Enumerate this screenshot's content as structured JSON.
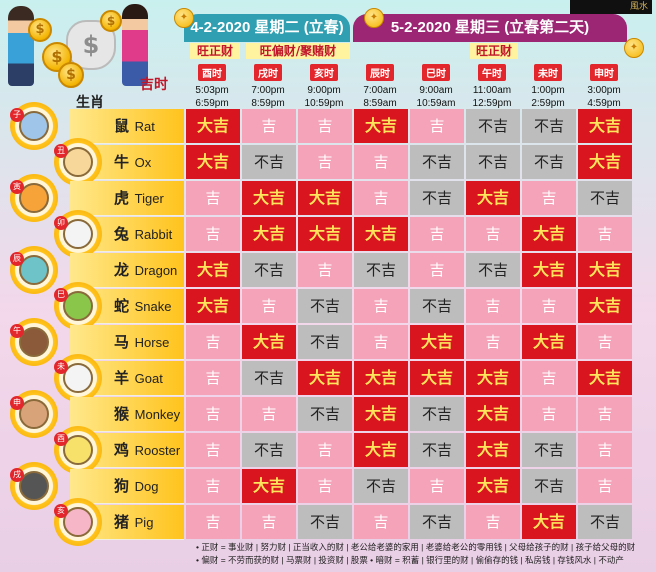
{
  "brand": {
    "logo_text": "風水"
  },
  "dates": [
    {
      "label": "4-2-2020 星期二 (立春)",
      "color": "#2f9fb1"
    },
    {
      "label": "5-2-2020 星期三 (立春第二天)",
      "color": "#9c2574"
    }
  ],
  "fortunes": [
    "旺正财",
    "旺偏财/聚赌财",
    "旺正财"
  ],
  "header": {
    "jishi": "吉时",
    "shengxiao": "生肖"
  },
  "slots": [
    {
      "tag": "酉时",
      "start": "5:03pm",
      "end": "6:59pm"
    },
    {
      "tag": "戌时",
      "start": "7:00pm",
      "end": "8:59pm"
    },
    {
      "tag": "亥时",
      "start": "9:00pm",
      "end": "10:59pm"
    },
    {
      "tag": "辰时",
      "start": "7:00am",
      "end": "8:59am"
    },
    {
      "tag": "巳时",
      "start": "9:00am",
      "end": "10:59am"
    },
    {
      "tag": "午时",
      "start": "11:00am",
      "end": "12:59pm"
    },
    {
      "tag": "未时",
      "start": "1:00pm",
      "end": "2:59pm"
    },
    {
      "tag": "申时",
      "start": "3:00pm",
      "end": "4:59pm"
    }
  ],
  "animals": [
    {
      "cn": "鼠",
      "en": "Rat",
      "badge": "子",
      "color": "#9fc6e8",
      "cells": [
        "大吉",
        "吉",
        "吉",
        "大吉",
        "吉",
        "不吉",
        "不吉",
        "大吉"
      ]
    },
    {
      "cn": "牛",
      "en": "Ox",
      "badge": "丑",
      "color": "#f7d79a",
      "cells": [
        "大吉",
        "不吉",
        "吉",
        "吉",
        "不吉",
        "不吉",
        "不吉",
        "大吉"
      ]
    },
    {
      "cn": "虎",
      "en": "Tiger",
      "badge": "寅",
      "color": "#f6a33a",
      "cells": [
        "吉",
        "大吉",
        "大吉",
        "吉",
        "不吉",
        "大吉",
        "吉",
        "不吉"
      ]
    },
    {
      "cn": "兔",
      "en": "Rabbit",
      "badge": "卯",
      "color": "#f4f4f4",
      "cells": [
        "吉",
        "大吉",
        "大吉",
        "大吉",
        "吉",
        "吉",
        "大吉",
        "吉"
      ]
    },
    {
      "cn": "龙",
      "en": "Dragon",
      "badge": "辰",
      "color": "#6ec3c9",
      "cells": [
        "大吉",
        "不吉",
        "吉",
        "不吉",
        "吉",
        "不吉",
        "大吉",
        "大吉"
      ]
    },
    {
      "cn": "蛇",
      "en": "Snake",
      "badge": "巳",
      "color": "#8ac64a",
      "cells": [
        "大吉",
        "吉",
        "不吉",
        "吉",
        "不吉",
        "吉",
        "吉",
        "大吉"
      ]
    },
    {
      "cn": "马",
      "en": "Horse",
      "badge": "午",
      "color": "#8a5a3a",
      "cells": [
        "吉",
        "大吉",
        "不吉",
        "吉",
        "大吉",
        "吉",
        "大吉",
        "吉"
      ]
    },
    {
      "cn": "羊",
      "en": "Goat",
      "badge": "未",
      "color": "#f4f4f4",
      "cells": [
        "吉",
        "不吉",
        "大吉",
        "大吉",
        "大吉",
        "大吉",
        "吉",
        "大吉"
      ]
    },
    {
      "cn": "猴",
      "en": "Monkey",
      "badge": "申",
      "color": "#d9a37a",
      "cells": [
        "吉",
        "吉",
        "不吉",
        "大吉",
        "不吉",
        "大吉",
        "吉",
        "吉"
      ]
    },
    {
      "cn": "鸡",
      "en": "Rooster",
      "badge": "酉",
      "color": "#f7e16a",
      "cells": [
        "吉",
        "不吉",
        "吉",
        "大吉",
        "不吉",
        "大吉",
        "不吉",
        "吉"
      ]
    },
    {
      "cn": "狗",
      "en": "Dog",
      "badge": "戌",
      "color": "#555555",
      "cells": [
        "吉",
        "大吉",
        "吉",
        "不吉",
        "吉",
        "大吉",
        "不吉",
        "吉"
      ]
    },
    {
      "cn": "猪",
      "en": "Pig",
      "badge": "亥",
      "color": "#f6b6c8",
      "cells": [
        "吉",
        "吉",
        "不吉",
        "吉",
        "不吉",
        "吉",
        "大吉",
        "不吉"
      ]
    }
  ],
  "notes": [
    "• 正财 = 事业财 | 努力财 | 正当收入的财 | 老公给老婆的家用 | 老婆给老公的零用钱 | 父母给孩子的财 | 孩子给父母的财",
    "• 偏财 = 不劳而获的财 | 马票财 | 投资财 | 股票  • 暗财 = 积蓄 | 银行里的财 | 偷偷存的钱 | 私房钱 | 存钱风水 | 不动产"
  ],
  "colors": {
    "da_ji": "#d9151f",
    "ji": "#f4a3b8",
    "bu_ji": "#bdbdbd"
  }
}
